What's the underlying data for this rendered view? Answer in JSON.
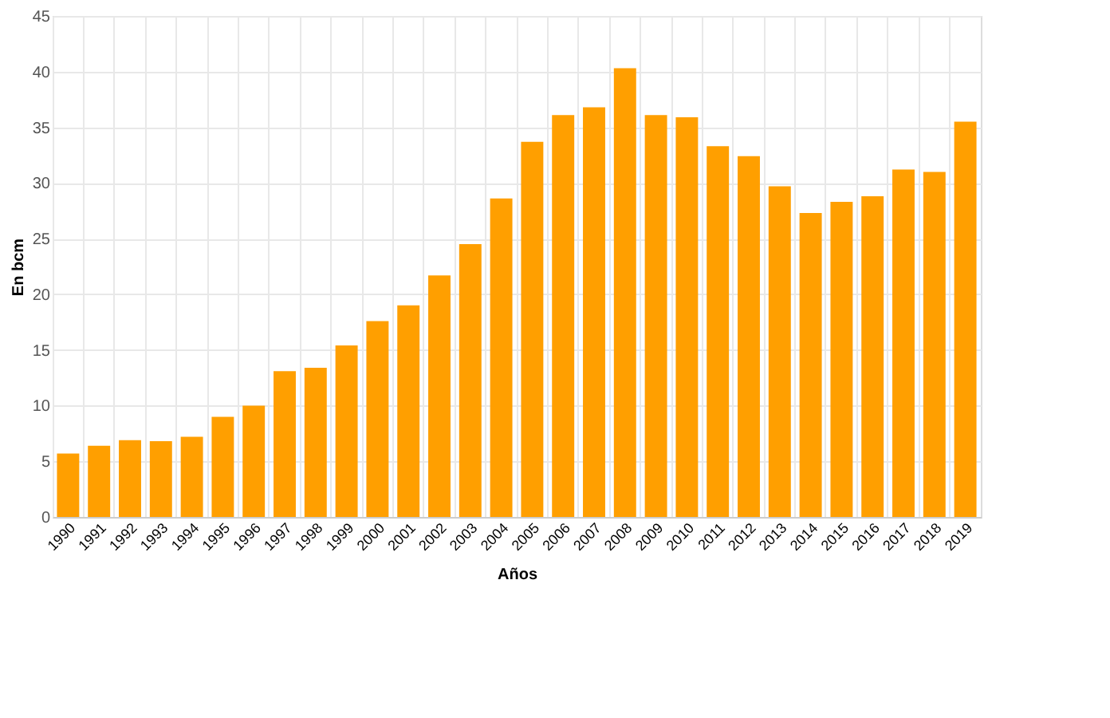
{
  "chart_data": {
    "type": "bar",
    "xlabel": "Años",
    "ylabel": "En bcm",
    "categories": [
      "1990",
      "1991",
      "1992",
      "1993",
      "1994",
      "1995",
      "1996",
      "1997",
      "1998",
      "1999",
      "2000",
      "2001",
      "2002",
      "2003",
      "2004",
      "2005",
      "2006",
      "2007",
      "2008",
      "2009",
      "2010",
      "2011",
      "2012",
      "2013",
      "2014",
      "2015",
      "2016",
      "2017",
      "2018",
      "2019"
    ],
    "values": [
      5.7,
      6.4,
      6.9,
      6.8,
      7.2,
      9.0,
      10.0,
      13.1,
      13.4,
      15.4,
      17.6,
      19.0,
      21.7,
      24.5,
      28.6,
      33.7,
      36.1,
      36.8,
      40.3,
      36.1,
      35.9,
      33.3,
      32.4,
      29.7,
      27.3,
      28.3,
      28.8,
      31.2,
      31.0,
      35.5
    ],
    "color": "#ff9f00",
    "ylim": [
      0,
      45
    ],
    "yticks": [
      0,
      5,
      10,
      15,
      20,
      25,
      30,
      35,
      40,
      45
    ],
    "grid": true
  }
}
